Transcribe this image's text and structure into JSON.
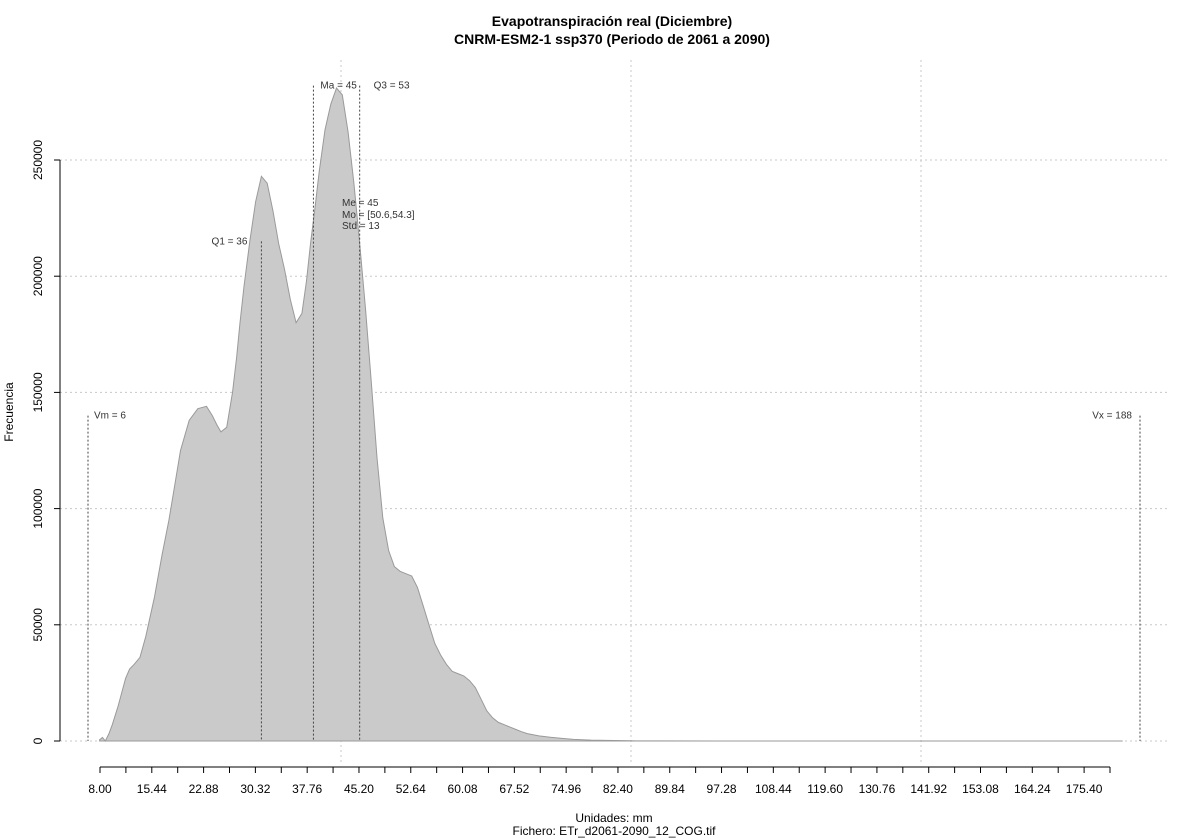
{
  "chart_data": {
    "type": "area",
    "title": "Evapotranspiración real (Diciembre)",
    "subtitle": "CNRM-ESM2-1 ssp370 (Periodo de 2061 a 2090)",
    "xlabel": "Unidades: mm",
    "caption": "Fichero: ETr_d2061-2090_12_COG.tif",
    "ylabel": "Frecuencia",
    "xlim": [
      6,
      188
    ],
    "ylim": [
      0,
      285000
    ],
    "x_ticks": [
      8.0,
      15.44,
      22.88,
      30.32,
      37.76,
      45.2,
      52.64,
      60.08,
      67.52,
      74.96,
      82.4,
      89.84,
      97.28,
      108.44,
      119.6,
      130.76,
      141.92,
      153.08,
      164.24,
      175.4
    ],
    "x_tick_labels": [
      "8.00",
      "15.44",
      "22.88",
      "30.32",
      "37.76",
      "45.20",
      "52.64",
      "60.08",
      "67.52",
      "74.96",
      "82.40",
      "89.84",
      "97.28",
      "108.44",
      "119.60",
      "130.76",
      "141.92",
      "153.08",
      "164.24",
      "175.40"
    ],
    "y_ticks": [
      0,
      50000,
      100000,
      150000,
      200000,
      250000
    ],
    "y_tick_labels": [
      "0",
      "50000",
      "100000",
      "150000",
      "200000",
      "250000"
    ],
    "grid": true,
    "series": [
      {
        "x": [
          8.0,
          8.5,
          9.0,
          9.6,
          10.2,
          11.2,
          12.5,
          13.2,
          14.0,
          15.0,
          16.0,
          17.5,
          18.8,
          20.0,
          21.0,
          22.0,
          23.5,
          25.0,
          26.5,
          27.5,
          28.3,
          29.0,
          30.0,
          31.0,
          31.7,
          32.3,
          33.0,
          34.0,
          35.0,
          36.0,
          37.0,
          38.0,
          39.0,
          40.0,
          41.0,
          42.0,
          43.0,
          43.8,
          44.5,
          45.2,
          46.0,
          47.0,
          48.0,
          49.0,
          50.0,
          51.0,
          52.0,
          53.0,
          54.0,
          55.0,
          56.0,
          57.0,
          58.0,
          59.0,
          60.0,
          61.0,
          62.0,
          63.0,
          64.0,
          65.0,
          66.0,
          67.0,
          68.0,
          69.0,
          70.0,
          71.0,
          72.0,
          73.0,
          74.0,
          75.0,
          76.0,
          77.0,
          78.0,
          79.0,
          80.0,
          81.0,
          82.0,
          84.0,
          86.0,
          88.0,
          90.0,
          93.0,
          97.0,
          100.0,
          105.0,
          115.0,
          130.0,
          150.0,
          170.0,
          185.0
        ],
        "y": [
          500,
          1500,
          0,
          3000,
          7000,
          15000,
          27000,
          31000,
          33000,
          36000,
          45000,
          62000,
          80000,
          95000,
          110000,
          125000,
          138000,
          143000,
          144000,
          140000,
          136000,
          133000,
          135000,
          150000,
          165000,
          180000,
          196000,
          215000,
          232000,
          243000,
          240000,
          228000,
          214000,
          203000,
          190000,
          180000,
          184000,
          198000,
          214000,
          228000,
          245000,
          263000,
          274000,
          281000,
          278000,
          262000,
          240000,
          214000,
          186000,
          155000,
          122000,
          96000,
          82000,
          75000,
          73000,
          72000,
          71000,
          66000,
          58000,
          50000,
          42000,
          37000,
          33000,
          30000,
          29000,
          28000,
          26000,
          23000,
          18000,
          13000,
          10000,
          8000,
          7000,
          6000,
          5000,
          4000,
          3200,
          2200,
          1600,
          1100,
          700,
          400,
          200,
          100,
          50,
          20,
          10,
          0,
          0,
          0
        ]
      }
    ],
    "annotations": [
      {
        "label": "Vm = 6",
        "x": 6,
        "line_top": 140000
      },
      {
        "label": "Q1 = 36",
        "x": 36,
        "line_top": 215000
      },
      {
        "label": "Ma = 45",
        "x": 45,
        "line_top": 282000
      },
      {
        "label": "Q3 = 53",
        "x": 53,
        "line_top": 282000
      },
      {
        "label": "Vx = 188",
        "x": 188,
        "line_top": 140000
      }
    ],
    "stats_block": [
      "Me = 45",
      "Mo = [50.6,54.3]",
      "Std = 13"
    ]
  }
}
